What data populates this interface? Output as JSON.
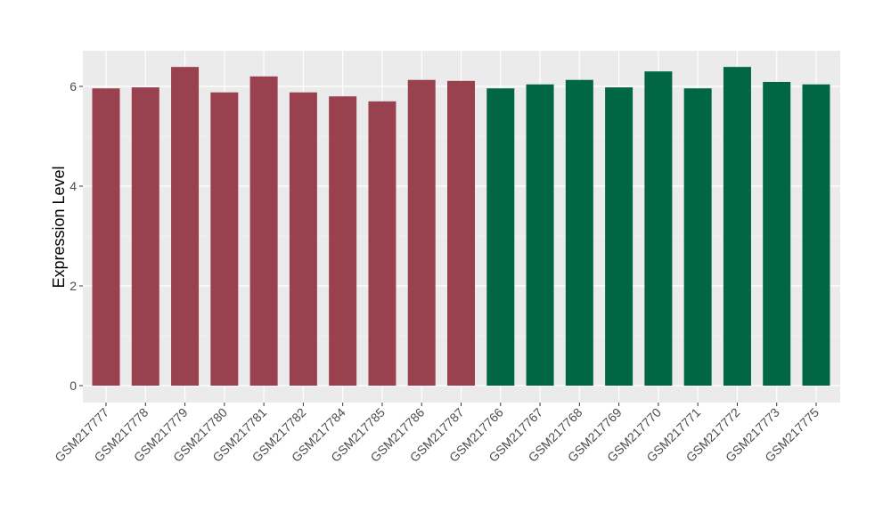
{
  "chart_data": {
    "type": "bar",
    "title": "",
    "xlabel": "",
    "ylabel": "Expression Level",
    "ylim": [
      -0.3,
      6.7
    ],
    "yticks": [
      0,
      2,
      4,
      6
    ],
    "grid": true,
    "categories": [
      "GSM217777",
      "GSM217778",
      "GSM217779",
      "GSM217780",
      "GSM217781",
      "GSM217782",
      "GSM217784",
      "GSM217785",
      "GSM217786",
      "GSM217787",
      "GSM217766",
      "GSM217767",
      "GSM217768",
      "GSM217769",
      "GSM217770",
      "GSM217771",
      "GSM217772",
      "GSM217773",
      "GSM217775"
    ],
    "values": [
      5.96,
      5.98,
      6.39,
      5.88,
      6.2,
      5.88,
      5.8,
      5.7,
      6.13,
      6.11,
      5.96,
      6.04,
      6.13,
      5.98,
      6.3,
      5.96,
      6.39,
      6.09,
      6.04
    ],
    "groups": [
      0,
      0,
      0,
      0,
      0,
      0,
      0,
      0,
      0,
      0,
      1,
      1,
      1,
      1,
      1,
      1,
      1,
      1,
      1
    ],
    "colors": [
      "#9a4150",
      "#006644"
    ],
    "panel_bg": "#ebebeb"
  }
}
